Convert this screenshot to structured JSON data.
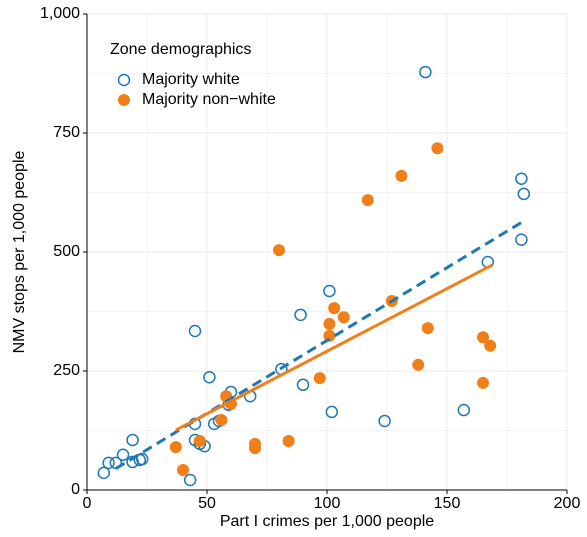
{
  "chart_data": {
    "type": "scatter",
    "x_label": "Part I crimes per 1,000 people",
    "y_label": "NMV stops per 1,000 people",
    "legend_title": "Zone demographics",
    "legend": "top-left",
    "grid": true,
    "xlim": [
      0,
      200
    ],
    "xticks": [
      0,
      50,
      100,
      150,
      200
    ],
    "ylim": [
      0,
      1000
    ],
    "yticks": [
      0,
      250,
      500,
      750,
      {
        "value": 1000,
        "label": "1,000"
      }
    ],
    "series": [
      {
        "name": "Majority white",
        "color": "#1f78b4",
        "marker": "open-circle",
        "x": [
          7,
          9,
          12,
          15,
          19,
          19,
          22,
          23,
          43,
          45,
          45,
          47,
          49,
          51,
          53,
          55,
          59,
          60,
          68,
          45,
          81,
          89,
          90,
          101,
          102,
          124,
          157,
          141,
          167,
          181,
          182,
          181
        ],
        "values": [
          36,
          57,
          57,
          74,
          105,
          59,
          63,
          65,
          21,
          139,
          105,
          97,
          92,
          237,
          139,
          145,
          179,
          206,
          197,
          334,
          254,
          368,
          221,
          418,
          164,
          145,
          168,
          878,
          479,
          654,
          622,
          526
        ],
        "fit": {
          "x": [
            12,
            182
          ],
          "y": [
            45,
            565
          ],
          "dash": true
        }
      },
      {
        "name": "Majority non−white",
        "color": "#f07f1a",
        "marker": "filled-circle",
        "x": [
          37,
          40,
          47,
          56,
          58,
          60,
          70,
          70,
          80,
          84,
          97,
          101,
          101,
          103,
          107,
          117,
          131,
          127,
          142,
          138,
          146,
          165,
          168,
          165
        ],
        "values": [
          90,
          42,
          103,
          147,
          197,
          181,
          97,
          88,
          504,
          103,
          235,
          349,
          324,
          382,
          363,
          609,
          660,
          397,
          340,
          263,
          718,
          321,
          303,
          225
        ],
        "fit": {
          "x": [
            37,
            169
          ],
          "y": [
            126,
            473
          ],
          "dash": false
        }
      }
    ]
  }
}
